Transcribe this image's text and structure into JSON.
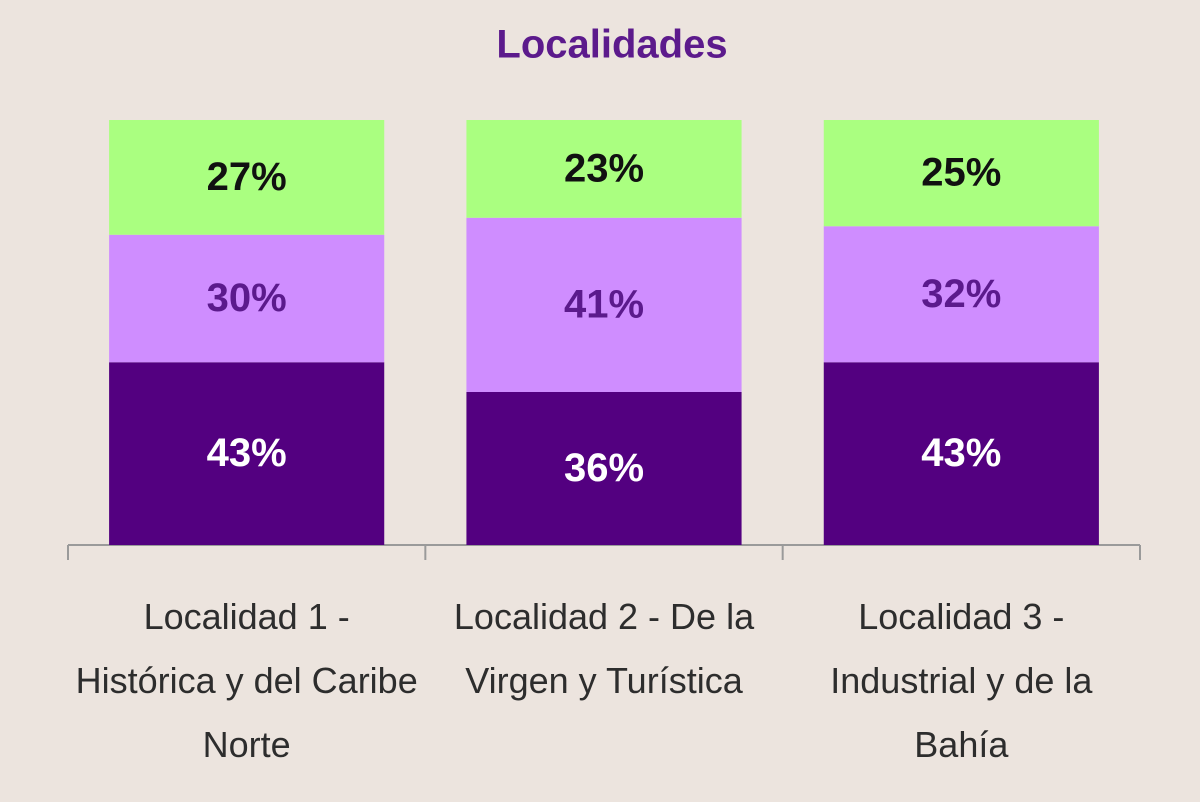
{
  "chart_data": {
    "type": "stacked-bar",
    "title": "Localidades",
    "categories": [
      "Localidad 1 - Histórica y del Caribe Norte",
      "Localidad 2 - De la Virgen y Turística",
      "Localidad 3 - Industrial y de la Bahía"
    ],
    "series": [
      {
        "color": "#530080",
        "label_color": "#ffffff",
        "values": [
          43,
          36,
          43
        ],
        "value_labels": [
          "43%",
          "36%",
          "43%"
        ]
      },
      {
        "color": "#cf8dff",
        "label_color": "#5b1a8c",
        "values": [
          30,
          41,
          32
        ],
        "value_labels": [
          "30%",
          "41%",
          "32%"
        ]
      },
      {
        "color": "#aaff80",
        "label_color": "#111111",
        "values": [
          27,
          23,
          25
        ],
        "value_labels": [
          "27%",
          "23%",
          "25%"
        ]
      }
    ]
  }
}
